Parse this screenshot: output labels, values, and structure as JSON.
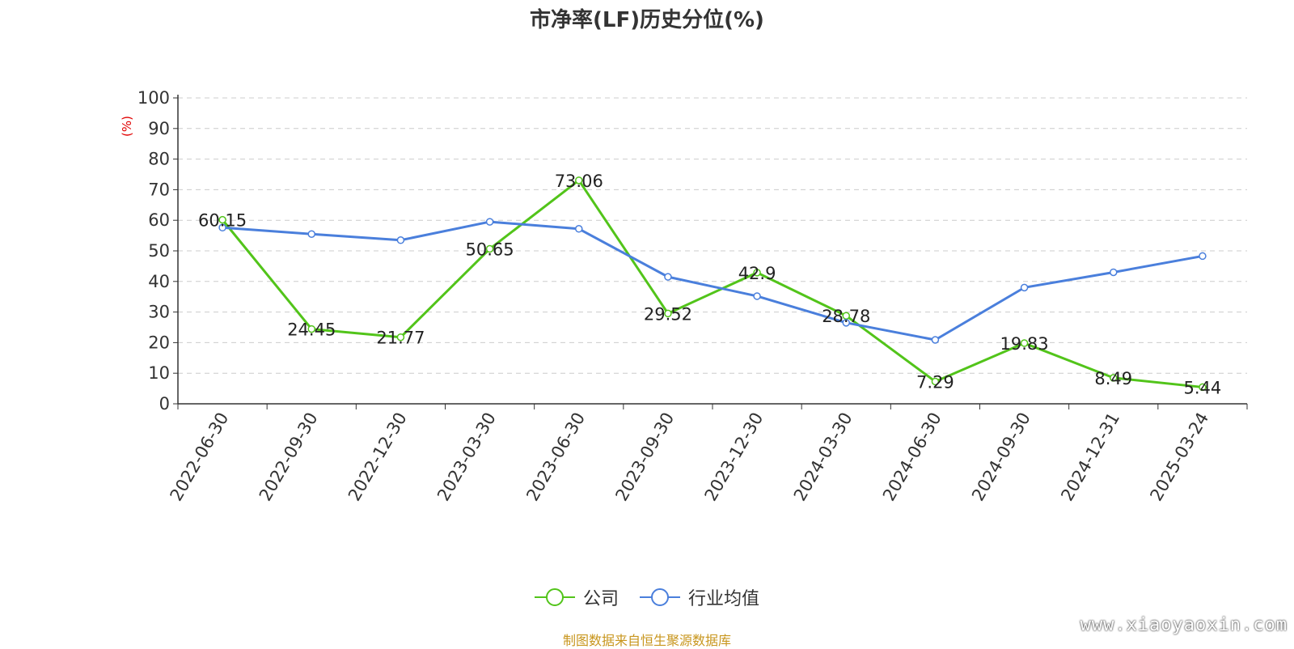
{
  "title": "市净率(LF)历史分位(%)",
  "source": "制图数据来自恒生聚源数据库",
  "watermark": "www.xiaoyaoxin.com",
  "chart_data": {
    "type": "line",
    "ylabel": "(%)",
    "ylim": [
      0,
      100
    ],
    "yticks": [
      0,
      10,
      20,
      30,
      40,
      50,
      60,
      70,
      80,
      90,
      100
    ],
    "grid": true,
    "legend_position": "bottom",
    "categories": [
      "2022-06-30",
      "2022-09-30",
      "2022-12-30",
      "2023-03-30",
      "2023-06-30",
      "2023-09-30",
      "2023-12-30",
      "2024-03-30",
      "2024-06-30",
      "2024-09-30",
      "2024-12-31",
      "2025-03-24"
    ],
    "series": [
      {
        "name": "公司",
        "color": "#52c41a",
        "show_labels": true,
        "values": [
          60.15,
          24.45,
          21.77,
          50.65,
          73.06,
          29.52,
          42.9,
          28.78,
          7.29,
          19.83,
          8.49,
          5.44
        ]
      },
      {
        "name": "行业均值",
        "color": "#4a7fdc",
        "show_labels": false,
        "values": [
          57.6,
          55.5,
          53.5,
          59.5,
          57.2,
          41.5,
          35.2,
          26.5,
          20.9,
          38.0,
          43.0,
          48.3
        ]
      }
    ]
  }
}
